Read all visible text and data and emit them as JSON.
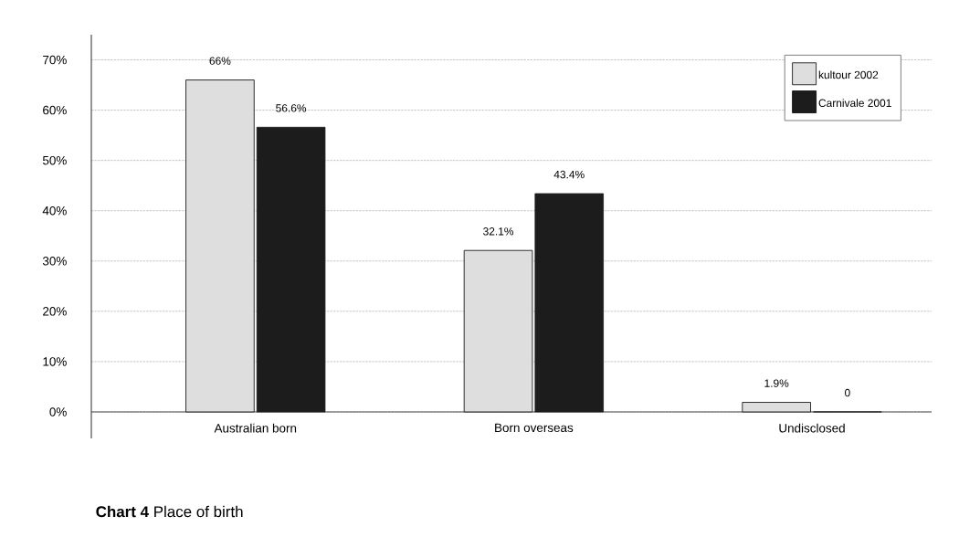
{
  "chart_data": {
    "type": "bar",
    "title": "**Chart 4** Place of birth",
    "categories": [
      "Australian born",
      "Born overseas",
      "Undisclosed"
    ],
    "series": [
      {
        "name": "kultour 2002",
        "color": "#dedede",
        "values": [
          66,
          32.1,
          1.9
        ],
        "value_labels": [
          "66%",
          "32.1%",
          "1.9%"
        ]
      },
      {
        "name": "Carnivale 2001",
        "color": "#1c1c1c",
        "values": [
          56.6,
          43.4,
          0
        ],
        "value_labels": [
          "56.6%",
          "43.4%",
          "0"
        ]
      }
    ],
    "ylim": [
      0,
      75
    ],
    "yticks": [
      {
        "value": 0,
        "label": "0%"
      },
      {
        "value": 10,
        "label": "10%"
      },
      {
        "value": 20,
        "label": "20%"
      },
      {
        "value": 30,
        "label": "30%"
      },
      {
        "value": 40,
        "label": "40%"
      },
      {
        "value": 50,
        "label": "50%"
      },
      {
        "value": 60,
        "label": "60%"
      },
      {
        "value": 70,
        "label": "70%"
      }
    ],
    "grid": "y",
    "legend": "top right"
  }
}
